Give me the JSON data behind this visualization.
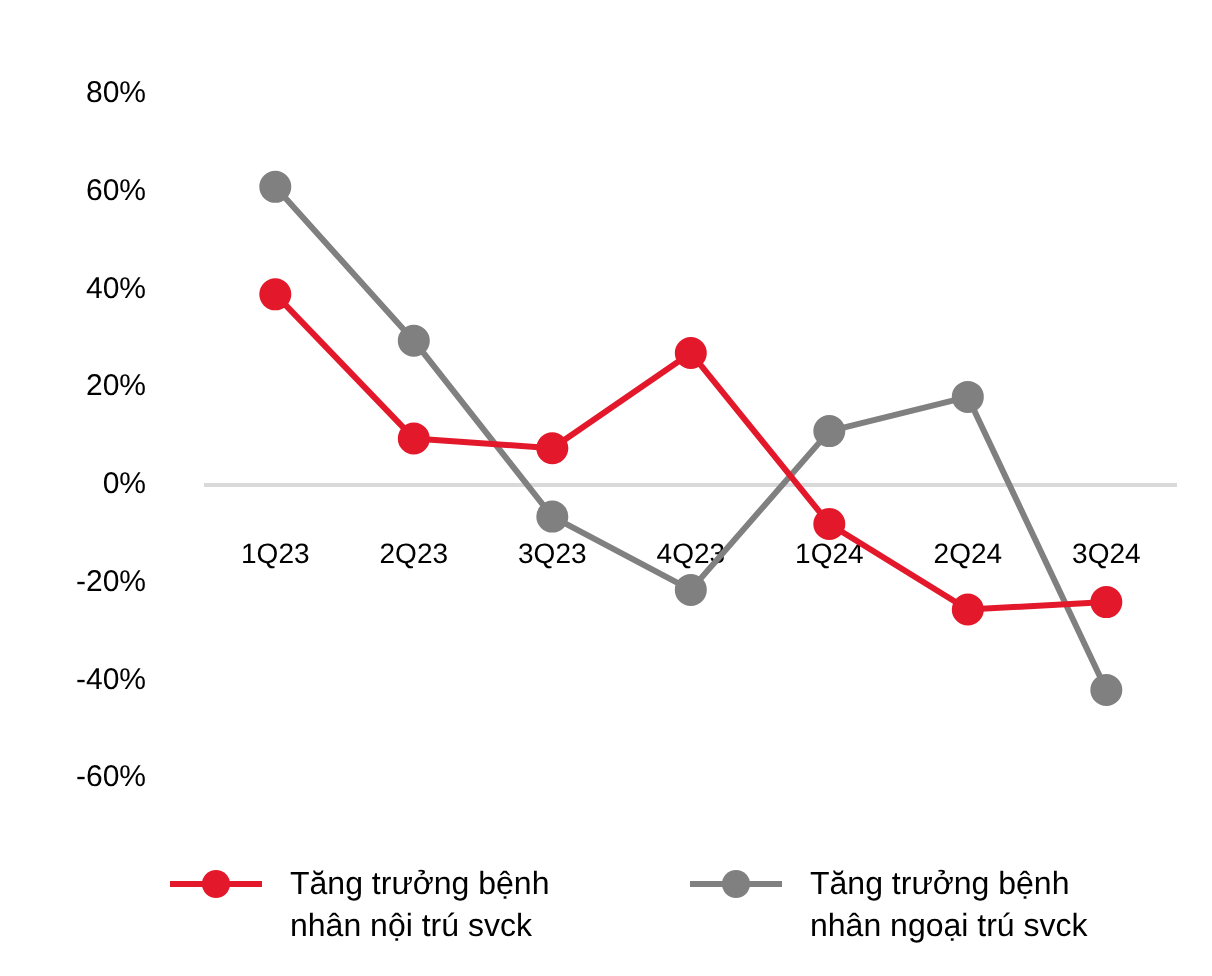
{
  "chart_data": {
    "type": "line",
    "categories": [
      "1Q23",
      "2Q23",
      "3Q23",
      "4Q23",
      "1Q24",
      "2Q24",
      "3Q24"
    ],
    "series": [
      {
        "name": "Tăng trưởng bệnh nhân nội trú svck",
        "color": "#e3192b",
        "values": [
          39,
          9.5,
          7.5,
          27,
          -8,
          -25.5,
          -24
        ]
      },
      {
        "name": "Tăng trưởng bệnh nhân ngoại trú svck",
        "color": "#808080",
        "values": [
          61,
          29.5,
          -6.5,
          -21.5,
          11,
          18,
          -42
        ]
      }
    ],
    "ylim": [
      -60,
      80
    ],
    "yticks": [
      {
        "value": -60,
        "label": "-60%"
      },
      {
        "value": -40,
        "label": "-40%"
      },
      {
        "value": -20,
        "label": "-20%"
      },
      {
        "value": 0,
        "label": "0%"
      },
      {
        "value": 20,
        "label": "20%"
      },
      {
        "value": 40,
        "label": "40%"
      },
      {
        "value": 60,
        "label": "60%"
      },
      {
        "value": 80,
        "label": "80%"
      }
    ],
    "grid": false,
    "legend": "bottom",
    "marker": "circle",
    "line_style": "solid"
  }
}
